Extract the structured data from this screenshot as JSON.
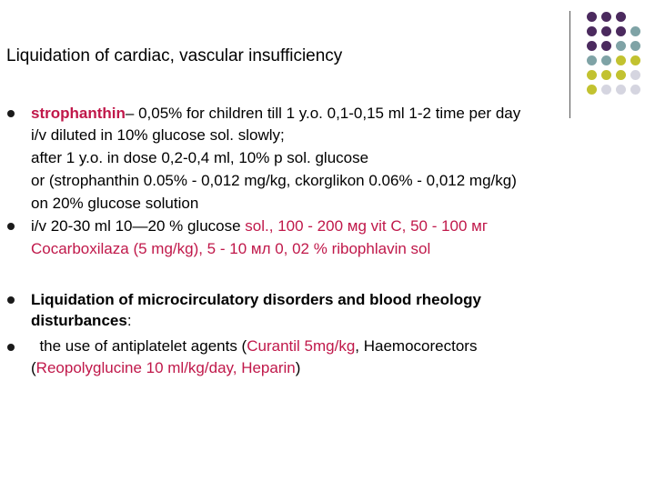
{
  "slide": {
    "title": "Liquidation of cardiac, vascular insufficiency",
    "p1": {
      "bold": "strophanthin",
      "l1_rest": "– 0,05% for children till 1 y.o. 0,1-0,15 ml 1-2 time per day",
      "l2": "i/v diluted in 10% glucose sol. slowly;",
      "l3": "after 1 y.o. in dose 0,2-0,4 ml, 10% p sol. glucose",
      "l4": "or  (strophanthin  0.05% - 0,012 mg/kg, ckorglikon 0.06% - 0,012 mg/kg)",
      "l5": "on 20% glucose solution"
    },
    "p2": {
      "l1_a": "i/v 20-30 ml 10—20 % glucose ",
      "l1_b": "sol., 100 - 200 мg vit C, 50 - 100 мг",
      "l2": "Cocarboxilaza (5 mg/kg), 5 - 10 мл 0, 02 % ribophlavin sol"
    },
    "p3": {
      "l1": "Liquidation of microcirculatory disorders and blood rheology",
      "l2_bold": "disturbances",
      "l2_rest": ":"
    },
    "p4": {
      "l1_a": "  the use of antiplatelet agents (",
      "l1_b": "Curantil 5mg/kg",
      "l1_c": ", Haemocorectors",
      "l2_a": "(",
      "l2_b": "Reopolyglucine 10 ml/kg/day, Heparin",
      "l2_c": ")"
    }
  },
  "colors": {
    "dot_purple": "#4b2a5e",
    "dot_teal": "#7fa3a6",
    "dot_olive": "#c2c230",
    "dot_grey": "#d5d5e0",
    "accent_red": "#c0184a"
  }
}
